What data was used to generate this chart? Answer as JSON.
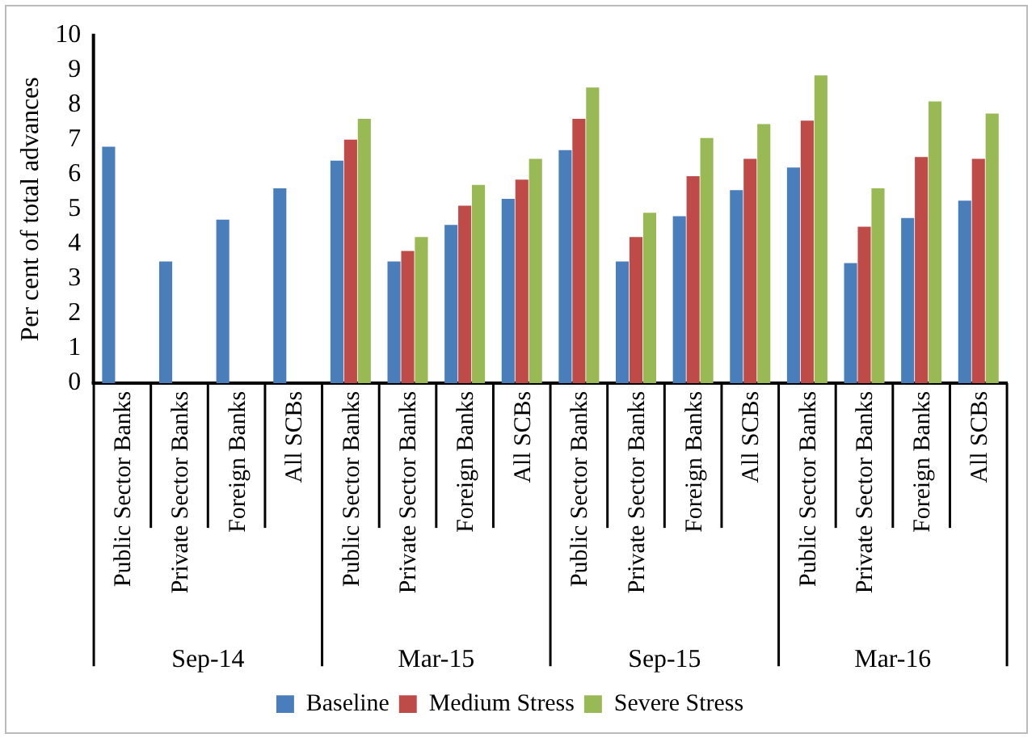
{
  "chart_data": {
    "type": "bar",
    "ylabel": "Per cent of total advances",
    "categories": [
      "Public Sector Banks",
      "Private Sector Banks",
      "Foreign Banks",
      "All SCBs",
      "Public Sector Banks",
      "Private Sector Banks",
      "Foreign Banks",
      "All SCBs",
      "Public Sector Banks",
      "Private Sector Banks",
      "Foreign Banks",
      "All SCBs",
      "Public Sector Banks",
      "Private Sector Banks",
      "Foreign Banks",
      "All SCBs"
    ],
    "annotations": [
      "Sep-14",
      "Mar-15",
      "Sep-15",
      "Mar-16"
    ],
    "series": [
      {
        "name": "Baseline",
        "color": "#4a7ebb",
        "values": [
          6.8,
          3.5,
          4.7,
          5.6,
          6.4,
          3.5,
          4.55,
          5.3,
          6.7,
          3.5,
          4.8,
          5.55,
          6.2,
          3.45,
          4.75,
          5.25
        ]
      },
      {
        "name": "Medium Stress",
        "color": "#be4b48",
        "values": [
          null,
          null,
          null,
          null,
          7.0,
          3.8,
          5.1,
          5.85,
          7.6,
          4.2,
          5.95,
          6.45,
          7.55,
          4.5,
          6.5,
          6.45
        ]
      },
      {
        "name": "Severe Stress",
        "color": "#98b954",
        "values": [
          null,
          null,
          null,
          null,
          7.6,
          4.2,
          5.7,
          6.45,
          8.5,
          4.9,
          7.05,
          7.45,
          8.85,
          5.6,
          8.1,
          7.75
        ]
      }
    ],
    "ylim": [
      0,
      10
    ],
    "yticks": [
      0,
      1,
      2,
      3,
      4,
      5,
      6,
      7,
      8,
      9,
      10
    ],
    "grid": false,
    "legend": "bottom"
  }
}
